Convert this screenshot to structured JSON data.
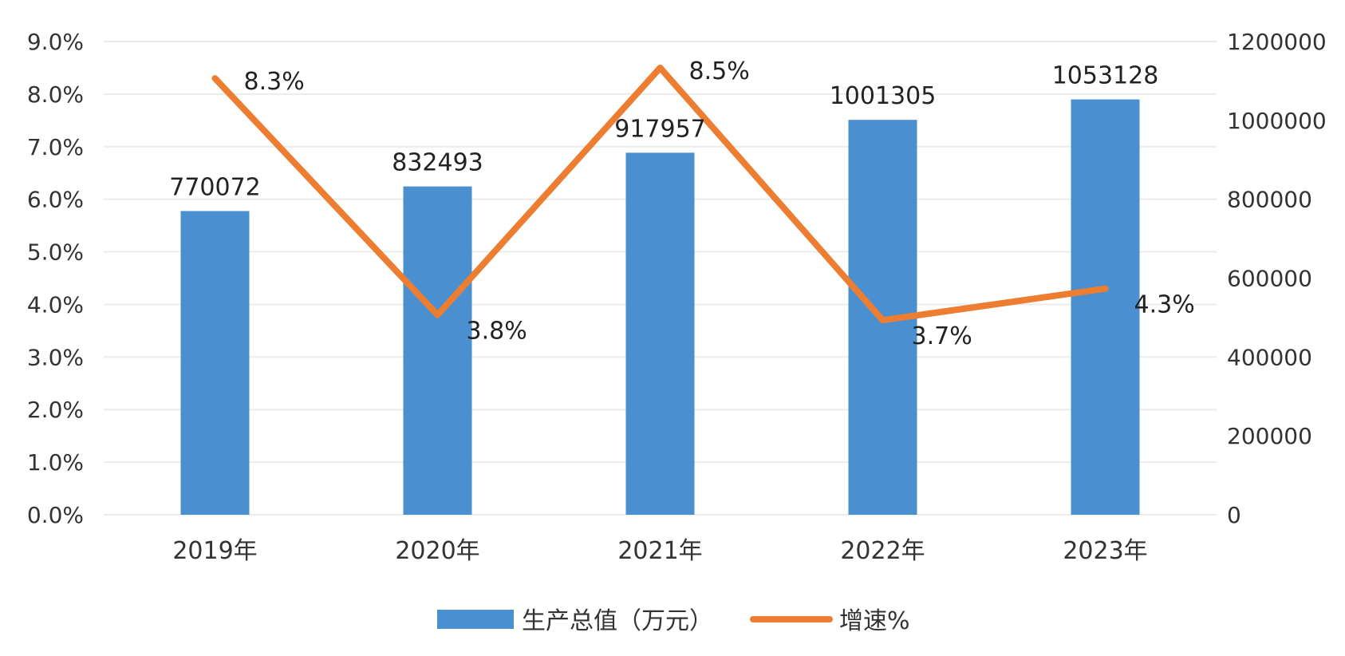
{
  "chart_data": {
    "type": "bar",
    "categories": [
      "2019年",
      "2020年",
      "2021年",
      "2022年",
      "2023年"
    ],
    "series": [
      {
        "name": "生产总值（万元）",
        "type": "bar",
        "axis": "right",
        "values": [
          770072,
          832493,
          917957,
          1001305,
          1053128
        ],
        "labels": [
          "770072",
          "832493",
          "917957",
          "1001305",
          "1053128"
        ],
        "color": "#4a90d0"
      },
      {
        "name": "增速%",
        "type": "line",
        "axis": "left",
        "values": [
          8.3,
          3.8,
          8.5,
          3.7,
          4.3
        ],
        "labels": [
          "8.3%",
          "3.8%",
          "8.5%",
          "3.7%",
          "4.3%"
        ],
        "color": "#ed7d31"
      }
    ],
    "y_left": {
      "min": 0,
      "max": 9,
      "step": 1,
      "ticks": [
        "0.0%",
        "1.0%",
        "2.0%",
        "3.0%",
        "4.0%",
        "5.0%",
        "6.0%",
        "7.0%",
        "8.0%",
        "9.0%"
      ]
    },
    "y_right": {
      "min": 0,
      "max": 1200000,
      "step": 200000,
      "ticks": [
        "0",
        "200000",
        "400000",
        "600000",
        "800000",
        "1000000",
        "1200000"
      ]
    },
    "grid": true,
    "gridline_color": "#ececec",
    "legend_position": "bottom"
  }
}
